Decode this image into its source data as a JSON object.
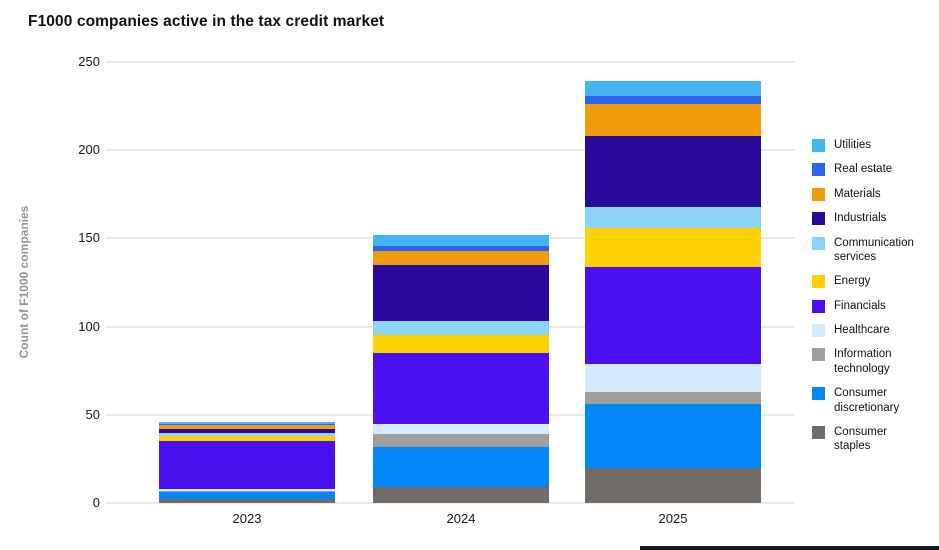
{
  "title": "F1000 companies active in the tax credit market",
  "y_axis": {
    "label": "Count of F1000 companies",
    "ticks": [
      0,
      50,
      100,
      150,
      200,
      250
    ]
  },
  "x_axis": {
    "categories": [
      "2023",
      "2024",
      "2025"
    ]
  },
  "colors": {
    "Utilities": "#45b5f2",
    "Real estate": "#2d64ee",
    "Materials": "#f09c0a",
    "Industrials": "#2a0a9b",
    "Communication services": "#8bd3f7",
    "Energy": "#ffd100",
    "Financials": "#4b10f2",
    "Healthcare": "#d4ebfb",
    "Information technology": "#a29e9b",
    "Consumer discretionary": "#0087fa",
    "Consumer staples": "#716c68",
    "gridline": "#eceae7",
    "title_text": "#111111",
    "axis_text": "#1a1a1a",
    "y_axis_label_text": "#989490"
  },
  "chart_data": {
    "type": "bar",
    "stacked": true,
    "title": "F1000 companies active in the tax credit market",
    "categories": [
      "2023",
      "2024",
      "2025"
    ],
    "series": [
      {
        "name": "Utilities",
        "values": [
          1,
          6,
          8
        ]
      },
      {
        "name": "Real estate",
        "values": [
          1,
          3,
          5
        ]
      },
      {
        "name": "Materials",
        "values": [
          2,
          8,
          18
        ]
      },
      {
        "name": "Industrials",
        "values": [
          2,
          32,
          40
        ]
      },
      {
        "name": "Communication services",
        "values": [
          2,
          8,
          12
        ]
      },
      {
        "name": "Energy",
        "values": [
          3,
          10,
          22
        ]
      },
      {
        "name": "Financials",
        "values": [
          27,
          40,
          55
        ]
      },
      {
        "name": "Healthcare",
        "values": [
          1,
          6,
          16
        ]
      },
      {
        "name": "Information technology",
        "values": [
          1,
          7,
          7
        ]
      },
      {
        "name": "Consumer discretionary",
        "values": [
          4,
          23,
          36
        ]
      },
      {
        "name": "Consumer staples",
        "values": [
          2,
          9,
          20
        ]
      }
    ],
    "totals": [
      46,
      152,
      239
    ],
    "stack_order_bottom_to_top": [
      "Consumer staples",
      "Consumer discretionary",
      "Information technology",
      "Healthcare",
      "Financials",
      "Energy",
      "Communication services",
      "Industrials",
      "Materials",
      "Real estate",
      "Utilities"
    ],
    "xlabel": "",
    "ylabel": "Count of F1000 companies",
    "ylim": [
      0,
      250
    ],
    "ytick_step": 50,
    "grid": true,
    "legend_position": "right",
    "legend_order_top_to_bottom": [
      "Utilities",
      "Real estate",
      "Materials",
      "Industrials",
      "Communication services",
      "Energy",
      "Financials",
      "Healthcare",
      "Information technology",
      "Consumer discretionary",
      "Consumer staples"
    ]
  }
}
